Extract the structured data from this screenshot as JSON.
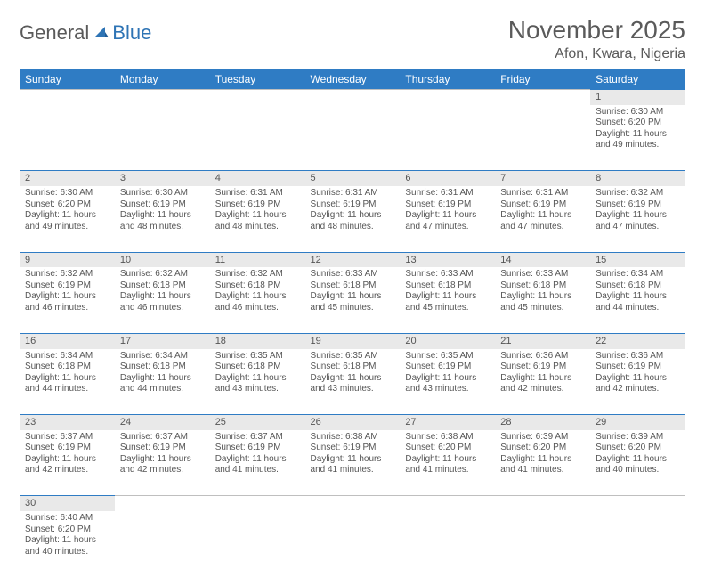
{
  "logo": {
    "general": "General",
    "blue": "Blue"
  },
  "title": "November 2025",
  "location": "Afon, Kwara, Nigeria",
  "colors": {
    "header_bg": "#2f7cc4",
    "header_text": "#ffffff",
    "daynum_bg": "#e9e9e9",
    "border": "#2f7cc4",
    "text": "#555555",
    "logo_gray": "#5a5a5a",
    "logo_blue": "#2e74b5"
  },
  "day_headers": [
    "Sunday",
    "Monday",
    "Tuesday",
    "Wednesday",
    "Thursday",
    "Friday",
    "Saturday"
  ],
  "weeks": [
    [
      null,
      null,
      null,
      null,
      null,
      null,
      {
        "n": "1",
        "sr": "6:30 AM",
        "ss": "6:20 PM",
        "dl": "11 hours and 49 minutes."
      }
    ],
    [
      {
        "n": "2",
        "sr": "6:30 AM",
        "ss": "6:20 PM",
        "dl": "11 hours and 49 minutes."
      },
      {
        "n": "3",
        "sr": "6:30 AM",
        "ss": "6:19 PM",
        "dl": "11 hours and 48 minutes."
      },
      {
        "n": "4",
        "sr": "6:31 AM",
        "ss": "6:19 PM",
        "dl": "11 hours and 48 minutes."
      },
      {
        "n": "5",
        "sr": "6:31 AM",
        "ss": "6:19 PM",
        "dl": "11 hours and 48 minutes."
      },
      {
        "n": "6",
        "sr": "6:31 AM",
        "ss": "6:19 PM",
        "dl": "11 hours and 47 minutes."
      },
      {
        "n": "7",
        "sr": "6:31 AM",
        "ss": "6:19 PM",
        "dl": "11 hours and 47 minutes."
      },
      {
        "n": "8",
        "sr": "6:32 AM",
        "ss": "6:19 PM",
        "dl": "11 hours and 47 minutes."
      }
    ],
    [
      {
        "n": "9",
        "sr": "6:32 AM",
        "ss": "6:19 PM",
        "dl": "11 hours and 46 minutes."
      },
      {
        "n": "10",
        "sr": "6:32 AM",
        "ss": "6:18 PM",
        "dl": "11 hours and 46 minutes."
      },
      {
        "n": "11",
        "sr": "6:32 AM",
        "ss": "6:18 PM",
        "dl": "11 hours and 46 minutes."
      },
      {
        "n": "12",
        "sr": "6:33 AM",
        "ss": "6:18 PM",
        "dl": "11 hours and 45 minutes."
      },
      {
        "n": "13",
        "sr": "6:33 AM",
        "ss": "6:18 PM",
        "dl": "11 hours and 45 minutes."
      },
      {
        "n": "14",
        "sr": "6:33 AM",
        "ss": "6:18 PM",
        "dl": "11 hours and 45 minutes."
      },
      {
        "n": "15",
        "sr": "6:34 AM",
        "ss": "6:18 PM",
        "dl": "11 hours and 44 minutes."
      }
    ],
    [
      {
        "n": "16",
        "sr": "6:34 AM",
        "ss": "6:18 PM",
        "dl": "11 hours and 44 minutes."
      },
      {
        "n": "17",
        "sr": "6:34 AM",
        "ss": "6:18 PM",
        "dl": "11 hours and 44 minutes."
      },
      {
        "n": "18",
        "sr": "6:35 AM",
        "ss": "6:18 PM",
        "dl": "11 hours and 43 minutes."
      },
      {
        "n": "19",
        "sr": "6:35 AM",
        "ss": "6:18 PM",
        "dl": "11 hours and 43 minutes."
      },
      {
        "n": "20",
        "sr": "6:35 AM",
        "ss": "6:19 PM",
        "dl": "11 hours and 43 minutes."
      },
      {
        "n": "21",
        "sr": "6:36 AM",
        "ss": "6:19 PM",
        "dl": "11 hours and 42 minutes."
      },
      {
        "n": "22",
        "sr": "6:36 AM",
        "ss": "6:19 PM",
        "dl": "11 hours and 42 minutes."
      }
    ],
    [
      {
        "n": "23",
        "sr": "6:37 AM",
        "ss": "6:19 PM",
        "dl": "11 hours and 42 minutes."
      },
      {
        "n": "24",
        "sr": "6:37 AM",
        "ss": "6:19 PM",
        "dl": "11 hours and 42 minutes."
      },
      {
        "n": "25",
        "sr": "6:37 AM",
        "ss": "6:19 PM",
        "dl": "11 hours and 41 minutes."
      },
      {
        "n": "26",
        "sr": "6:38 AM",
        "ss": "6:19 PM",
        "dl": "11 hours and 41 minutes."
      },
      {
        "n": "27",
        "sr": "6:38 AM",
        "ss": "6:20 PM",
        "dl": "11 hours and 41 minutes."
      },
      {
        "n": "28",
        "sr": "6:39 AM",
        "ss": "6:20 PM",
        "dl": "11 hours and 41 minutes."
      },
      {
        "n": "29",
        "sr": "6:39 AM",
        "ss": "6:20 PM",
        "dl": "11 hours and 40 minutes."
      }
    ],
    [
      {
        "n": "30",
        "sr": "6:40 AM",
        "ss": "6:20 PM",
        "dl": "11 hours and 40 minutes."
      },
      null,
      null,
      null,
      null,
      null,
      null
    ]
  ],
  "labels": {
    "sunrise": "Sunrise:",
    "sunset": "Sunset:",
    "daylight": "Daylight:"
  }
}
